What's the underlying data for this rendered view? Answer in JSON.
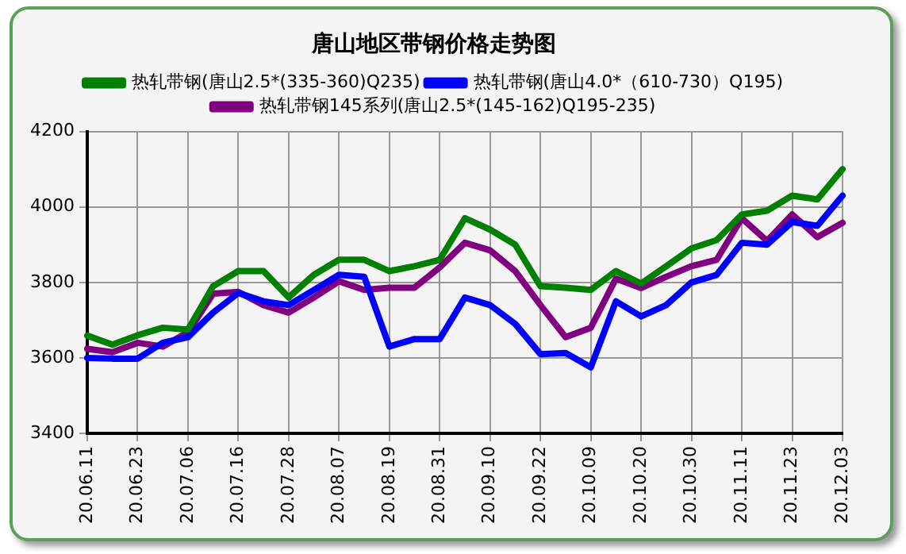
{
  "chart_data": {
    "type": "line",
    "title": "唐山地区带钢价格走势图",
    "categories": [
      "20.06.11",
      null,
      "20.06.23",
      null,
      "20.07.06",
      null,
      "20.07.16",
      null,
      "20.07.28",
      null,
      "20.08.07",
      null,
      "20.08.19",
      null,
      "20.08.31",
      null,
      "20.09.10",
      null,
      "20.09.22",
      null,
      "20.10.09",
      null,
      "20.10.20",
      null,
      "20.10.30",
      null,
      "20.11.11",
      null,
      "20.11.23",
      null,
      "20.12.03"
    ],
    "series": [
      {
        "name": "热轧带钢(唐山2.5*(335-360)Q235)",
        "color": "#008000",
        "values": [
          3659,
          3635,
          3660,
          3680,
          3675,
          3790,
          3830,
          3830,
          3760,
          3820,
          3860,
          3860,
          3830,
          3843,
          3860,
          3970,
          3940,
          3900,
          3790,
          3786,
          3780,
          3830,
          3797,
          3843,
          3890,
          3912,
          3980,
          3990,
          4030,
          4020,
          4100
        ]
      },
      {
        "name": "热轧带钢(唐山4.0*（610-730）Q195)",
        "color": "#0000ff",
        "values": [
          3600,
          3598,
          3598,
          3640,
          3655,
          3720,
          3772,
          3750,
          3740,
          3780,
          3820,
          3815,
          3630,
          3650,
          3650,
          3760,
          3740,
          3690,
          3610,
          3613,
          3575,
          3750,
          3710,
          3740,
          3800,
          3820,
          3905,
          3900,
          3960,
          3950,
          4030
        ]
      },
      {
        "name": "热轧带钢145系列(唐山2.5*(145-162)Q195-235)",
        "color": "#800080",
        "values": [
          3624,
          3615,
          3640,
          3630,
          3668,
          3770,
          3775,
          3740,
          3720,
          3760,
          3803,
          3780,
          3786,
          3786,
          3840,
          3905,
          3885,
          3830,
          3740,
          3655,
          3680,
          3810,
          3785,
          3815,
          3843,
          3860,
          3970,
          3910,
          3980,
          3920,
          3958
        ]
      }
    ],
    "ylim": [
      3400,
      4200
    ],
    "yticks": [
      3400,
      3600,
      3800,
      4000,
      4200
    ],
    "grid": true,
    "legend": "top",
    "marker": "none",
    "line_style": "solid"
  }
}
